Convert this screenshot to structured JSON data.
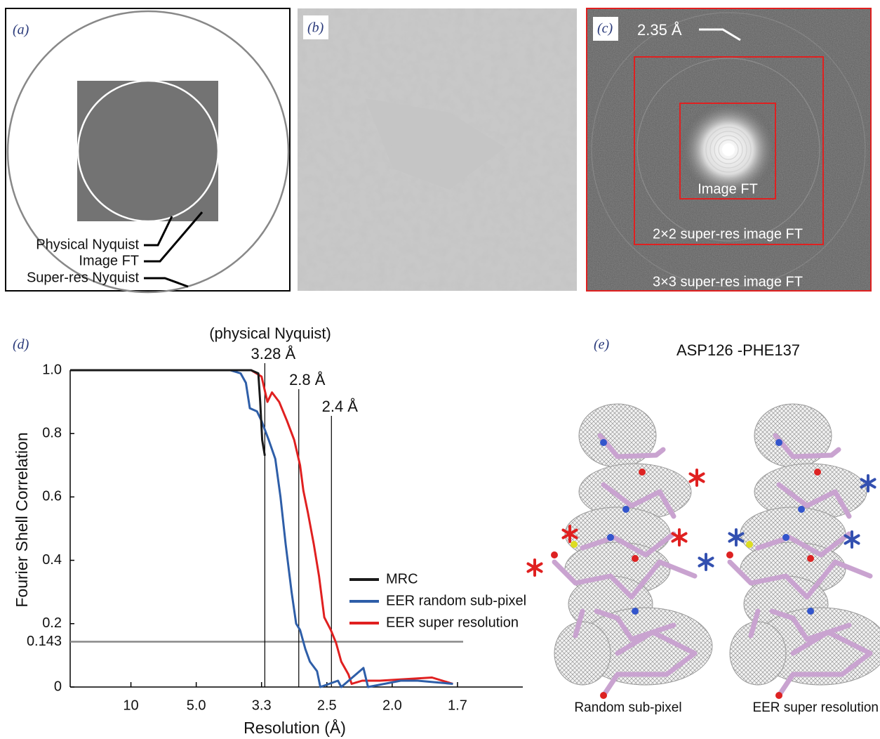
{
  "panels": {
    "a": {
      "label": "(a)",
      "annotations": [
        "Physical Nyquist",
        "Image FT",
        "Super-res Nyquist"
      ]
    },
    "b": {
      "label": "(b)"
    },
    "c": {
      "label": "(c)",
      "resolution": "2.35 Å",
      "regions": [
        "Image FT",
        "2×2 super-res image FT",
        "3×3 super-res image FT"
      ]
    },
    "d": {
      "label": "(d)"
    },
    "e": {
      "label": "(e)",
      "title": "ASP126 -PHE137",
      "captions": [
        "Random sub-pixel",
        "EER super resolution"
      ]
    }
  },
  "chart_data": {
    "type": "line",
    "xlabel": "Resolution (Å)",
    "ylabel": "Fourier Shell Correlation",
    "xlim": [
      0.007,
      0.7
    ],
    "ylim": [
      0,
      1
    ],
    "xticks": [
      {
        "value": 0.1,
        "label": "10"
      },
      {
        "value": 0.2,
        "label": "5.0"
      },
      {
        "value": 0.3,
        "label": "3.3"
      },
      {
        "value": 0.4,
        "label": "2.5"
      },
      {
        "value": 0.5,
        "label": "2.0"
      },
      {
        "value": 0.6,
        "label": "1.7"
      }
    ],
    "yticks": [
      0,
      {
        "value": 0.143,
        "label": "0.143"
      },
      0.2,
      0.4,
      0.6,
      0.8,
      {
        "value": 1,
        "label": "1.0"
      }
    ],
    "annotation": "(physical Nyquist)",
    "markers": [
      {
        "value": 0.305,
        "label": "3.28 Å"
      },
      {
        "value": 0.357,
        "label": "2.8 Å"
      },
      {
        "value": 0.407,
        "label": "2.4 Å"
      }
    ],
    "series": [
      {
        "name": "MRC",
        "color": "#1a1a1a",
        "x": [
          0.007,
          0.284,
          0.295,
          0.298,
          0.301,
          0.305
        ],
        "values": [
          1,
          1,
          0.99,
          0.9,
          0.78,
          0.73
        ]
      },
      {
        "name": "EER random sub-pixel",
        "color": "#2e5ea8",
        "x": [
          0.007,
          0.252,
          0.268,
          0.276,
          0.282,
          0.293,
          0.3,
          0.311,
          0.321,
          0.329,
          0.337,
          0.346,
          0.353,
          0.359,
          0.367,
          0.374,
          0.385,
          0.39,
          0.417,
          0.422,
          0.456,
          0.463,
          0.513,
          0.539,
          0.593
        ],
        "values": [
          1,
          1,
          0.99,
          0.96,
          0.88,
          0.87,
          0.84,
          0.78,
          0.72,
          0.6,
          0.45,
          0.3,
          0.2,
          0.18,
          0.12,
          0.08,
          0.05,
          0,
          0.02,
          0,
          0.06,
          0,
          0.02,
          0.02,
          0.01
        ]
      },
      {
        "name": "EER super resolution",
        "color": "#e02020",
        "x": [
          0.007,
          0.284,
          0.3,
          0.309,
          0.316,
          0.327,
          0.339,
          0.35,
          0.359,
          0.364,
          0.371,
          0.38,
          0.388,
          0.396,
          0.406,
          0.414,
          0.422,
          0.433,
          0.438,
          0.454,
          0.481,
          0.561,
          0.593
        ],
        "values": [
          1,
          1,
          0.98,
          0.9,
          0.93,
          0.9,
          0.84,
          0.78,
          0.7,
          0.62,
          0.55,
          0.45,
          0.35,
          0.22,
          0.18,
          0.14,
          0.08,
          0.04,
          0.01,
          0.02,
          0.02,
          0.03,
          0.01
        ]
      }
    ]
  }
}
